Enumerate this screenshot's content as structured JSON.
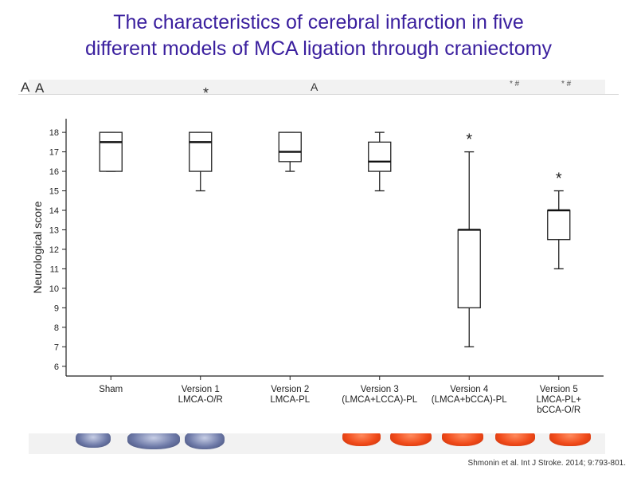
{
  "slide": {
    "title_line1": "The characteristics of cerebral infarction in five",
    "title_line2": "different models of MCA ligation through craniectomy",
    "citation": "Shmonin et al. Int J Stroke. 2014; 9:793-801.",
    "background_labels": {
      "a1": "A",
      "a2": "A",
      "a3": "A",
      "star": "*",
      "marker1": "* #",
      "marker2": "* #"
    },
    "colors": {
      "title": "#3a1f9e",
      "brain_blue": "#6e7aa8",
      "brain_red": "#f04a1a"
    }
  },
  "chart_data": {
    "type": "boxplot",
    "title": "",
    "xlabel": "",
    "ylabel": "Neurological score",
    "ylim": [
      5.5,
      18.7
    ],
    "yticks": [
      6,
      7,
      8,
      9,
      10,
      11,
      12,
      13,
      14,
      15,
      16,
      17,
      18
    ],
    "grid": false,
    "categories": [
      [
        "Sham"
      ],
      [
        "Version 1",
        "LMCA-O/R"
      ],
      [
        "Version 2",
        "LMCA-PL"
      ],
      [
        "Version 3",
        "(LMCA+LCCA)-PL"
      ],
      [
        "Version 4",
        "(LMCA+bCCA)-PL"
      ],
      [
        "Version 5",
        "LMCA-PL+",
        "bCCA-O/R"
      ]
    ],
    "boxes": [
      {
        "min": 16,
        "q1": 16,
        "median": 17.5,
        "q3": 18,
        "max": 18,
        "annotation": ""
      },
      {
        "min": 15,
        "q1": 16,
        "median": 17.5,
        "q3": 18,
        "max": 18,
        "annotation": ""
      },
      {
        "min": 16,
        "q1": 16.5,
        "median": 17,
        "q3": 18,
        "max": 18,
        "annotation": ""
      },
      {
        "min": 15,
        "q1": 16,
        "median": 16.5,
        "q3": 17.5,
        "max": 18,
        "annotation": ""
      },
      {
        "min": 7,
        "q1": 9,
        "median": 13,
        "q3": 13,
        "max": 17,
        "annotation": "*"
      },
      {
        "min": 11,
        "q1": 12.5,
        "median": 14,
        "q3": 14,
        "max": 15,
        "annotation": "*"
      }
    ]
  }
}
